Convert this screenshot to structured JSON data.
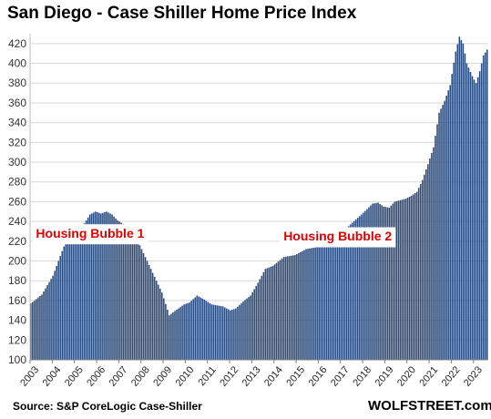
{
  "chart_data": {
    "type": "bar",
    "title": "San Diego - Case Shiller Home Price Index",
    "xlabel": "",
    "ylabel": "",
    "ylim": [
      100,
      430
    ],
    "yticks": [
      100,
      120,
      140,
      160,
      180,
      200,
      220,
      240,
      260,
      280,
      300,
      320,
      340,
      360,
      380,
      400,
      420
    ],
    "grid": true,
    "legend": "none",
    "frequency": "monthly",
    "start": "2003-01",
    "end": "2023-08",
    "xtick_labels": [
      "2003",
      "2004",
      "2005",
      "2006",
      "2007",
      "2008",
      "2009",
      "2010",
      "2011",
      "2012",
      "2013",
      "2014",
      "2015",
      "2016",
      "2017",
      "2018",
      "2019",
      "2020",
      "2021",
      "2022",
      "2023"
    ],
    "anchors": [
      [
        "2003-01",
        157
      ],
      [
        "2003-07",
        166
      ],
      [
        "2004-01",
        185
      ],
      [
        "2004-06",
        210
      ],
      [
        "2004-10",
        229
      ],
      [
        "2005-01",
        232
      ],
      [
        "2005-06",
        238
      ],
      [
        "2005-09",
        247
      ],
      [
        "2005-12",
        250
      ],
      [
        "2006-03",
        248
      ],
      [
        "2006-06",
        250
      ],
      [
        "2006-09",
        247
      ],
      [
        "2006-12",
        241
      ],
      [
        "2007-06",
        234
      ],
      [
        "2007-09",
        227
      ],
      [
        "2007-12",
        216
      ],
      [
        "2008-06",
        192
      ],
      [
        "2008-12",
        168
      ],
      [
        "2009-04",
        145
      ],
      [
        "2009-06",
        148
      ],
      [
        "2009-09",
        152
      ],
      [
        "2009-12",
        156
      ],
      [
        "2010-03",
        158
      ],
      [
        "2010-07",
        165
      ],
      [
        "2010-10",
        162
      ],
      [
        "2011-03",
        156
      ],
      [
        "2011-06",
        155
      ],
      [
        "2011-09",
        154
      ],
      [
        "2012-01",
        150
      ],
      [
        "2012-04",
        152
      ],
      [
        "2012-08",
        159
      ],
      [
        "2012-12",
        165
      ],
      [
        "2013-04",
        178
      ],
      [
        "2013-08",
        192
      ],
      [
        "2013-12",
        195
      ],
      [
        "2014-06",
        204
      ],
      [
        "2014-12",
        206
      ],
      [
        "2015-06",
        212
      ],
      [
        "2015-12",
        214
      ],
      [
        "2016-06",
        222
      ],
      [
        "2016-12",
        226
      ],
      [
        "2017-06",
        237
      ],
      [
        "2017-12",
        247
      ],
      [
        "2018-06",
        258
      ],
      [
        "2018-09",
        259
      ],
      [
        "2018-12",
        255
      ],
      [
        "2019-03",
        254
      ],
      [
        "2019-06",
        260
      ],
      [
        "2019-12",
        263
      ],
      [
        "2020-03",
        266
      ],
      [
        "2020-06",
        270
      ],
      [
        "2020-09",
        282
      ],
      [
        "2020-12",
        298
      ],
      [
        "2021-03",
        315
      ],
      [
        "2021-06",
        350
      ],
      [
        "2021-09",
        362
      ],
      [
        "2021-12",
        378
      ],
      [
        "2022-03",
        412
      ],
      [
        "2022-05",
        427
      ],
      [
        "2022-07",
        420
      ],
      [
        "2022-09",
        400
      ],
      [
        "2022-12",
        387
      ],
      [
        "2023-02",
        380
      ],
      [
        "2023-04",
        392
      ],
      [
        "2023-06",
        408
      ],
      [
        "2023-08",
        414
      ]
    ],
    "annotations": [
      {
        "text": "Housing Bubble 1",
        "x": "2005-09",
        "y": 227
      },
      {
        "text": "Housing Bubble 2",
        "x": "2016-11",
        "y": 224
      }
    ],
    "colors": {
      "bar": "#2b4c7e",
      "grid": "#d9d9d9",
      "annotation": "#e00000"
    }
  },
  "source": "Source: S&P CoreLogic Case-Shiller",
  "brand": "WOLFSTREET.com"
}
